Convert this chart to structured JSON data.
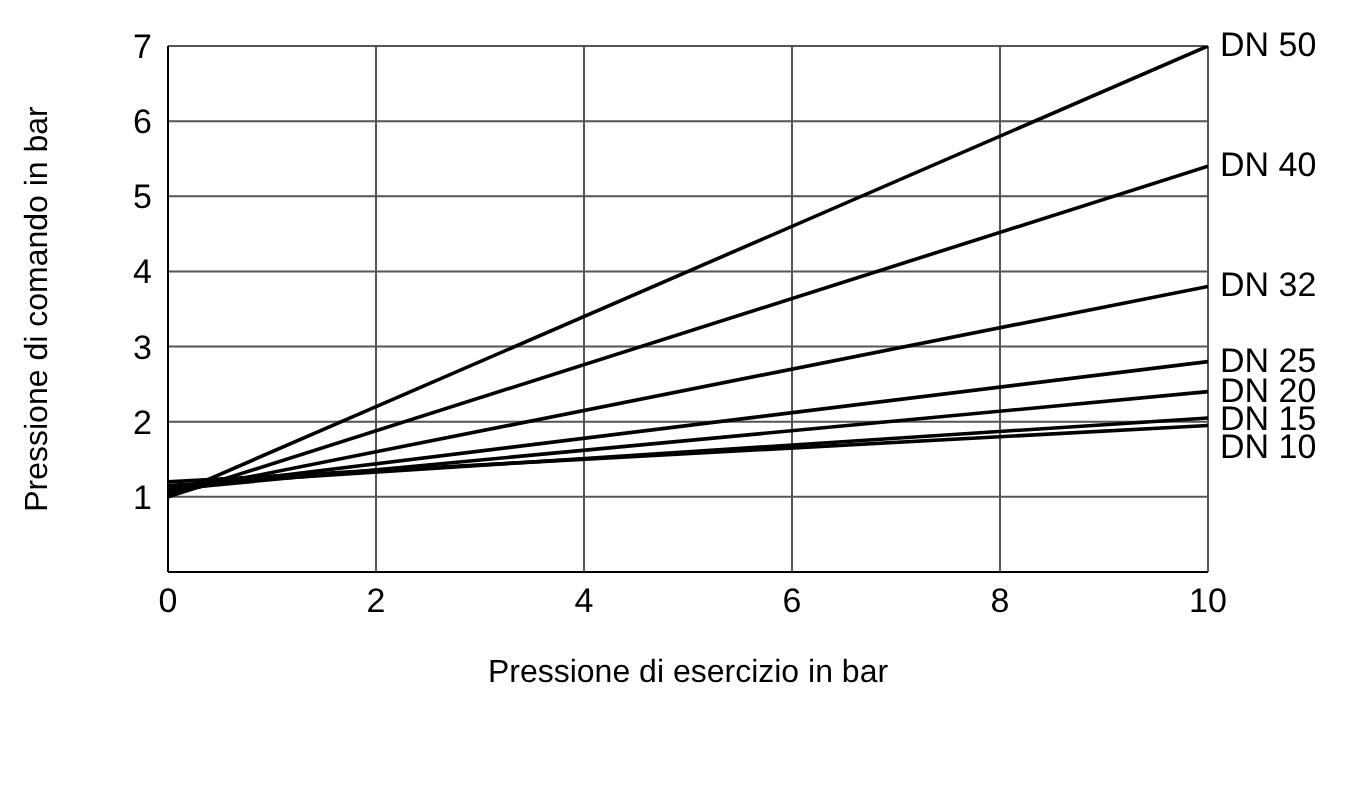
{
  "chart_data": {
    "type": "line",
    "xlabel": "Pressione di esercizio in bar",
    "ylabel": "Pressione di comando in bar",
    "x": [
      0,
      10
    ],
    "series": [
      {
        "name": "DN 50",
        "color": "#000000",
        "values": [
          1.0,
          7.0
        ]
      },
      {
        "name": "DN 40",
        "color": "#000000",
        "values": [
          1.0,
          5.4
        ]
      },
      {
        "name": "DN 32",
        "color": "#000000",
        "values": [
          1.05,
          3.8
        ]
      },
      {
        "name": "DN 25",
        "color": "#000000",
        "values": [
          1.1,
          2.8
        ]
      },
      {
        "name": "DN 20",
        "color": "#000000",
        "values": [
          1.1,
          2.4
        ]
      },
      {
        "name": "DN 15",
        "color": "#000000",
        "values": [
          1.15,
          2.05
        ]
      },
      {
        "name": "DN 10",
        "color": "#000000",
        "values": [
          1.2,
          1.95
        ]
      }
    ],
    "xlim": [
      0,
      10
    ],
    "xticks": [
      0,
      2,
      4,
      6,
      8,
      10
    ],
    "ylim": [
      0,
      7
    ],
    "yticks": [
      1,
      2,
      3,
      4,
      5,
      6,
      7
    ],
    "grid": true,
    "legend": false,
    "marker": "none",
    "line_style": "solid"
  }
}
